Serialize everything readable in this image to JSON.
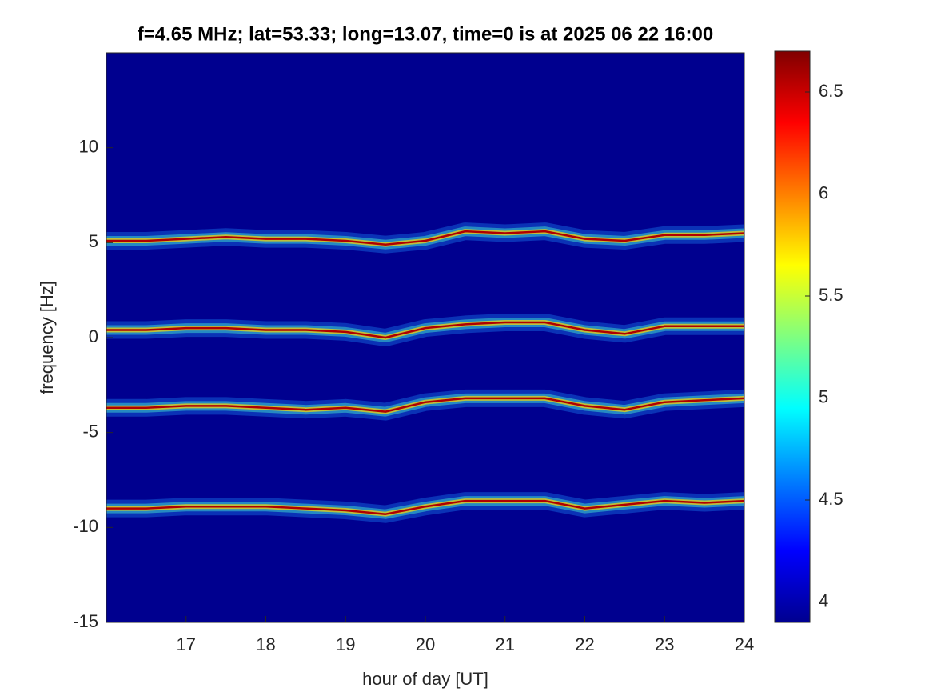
{
  "chart_data": {
    "type": "spectrogram",
    "title": "f=4.65 MHz;  lat=53.33; long=13.07, time=0 is at 2025 06 22 16:00",
    "xlabel": "hour of day [UT]",
    "ylabel": "frequency [Hz]",
    "xlim": [
      16,
      24
    ],
    "xticks": [
      17,
      18,
      19,
      20,
      21,
      22,
      23,
      24
    ],
    "ylim": [
      -15,
      15
    ],
    "yticks": [
      -15,
      -10,
      -5,
      0,
      5,
      10
    ],
    "background": "#00008f",
    "line_color": "#b00000",
    "x": [
      16,
      16.5,
      17,
      17.5,
      18,
      18.5,
      19,
      19.5,
      20,
      20.5,
      21,
      21.5,
      22,
      22.5,
      23,
      23.5,
      24
    ],
    "series": [
      {
        "values": [
          5.1,
          5.1,
          5.2,
          5.3,
          5.2,
          5.2,
          5.1,
          4.9,
          5.1,
          5.6,
          5.5,
          5.6,
          5.2,
          5.1,
          5.4,
          5.4,
          5.5
        ]
      },
      {
        "values": [
          0.4,
          0.4,
          0.5,
          0.5,
          0.4,
          0.4,
          0.3,
          0.0,
          0.5,
          0.7,
          0.8,
          0.8,
          0.4,
          0.2,
          0.6,
          0.6,
          0.6
        ]
      },
      {
        "values": [
          -3.7,
          -3.7,
          -3.6,
          -3.6,
          -3.7,
          -3.8,
          -3.7,
          -3.9,
          -3.4,
          -3.2,
          -3.2,
          -3.2,
          -3.6,
          -3.8,
          -3.4,
          -3.3,
          -3.2
        ]
      },
      {
        "values": [
          -9.0,
          -9.0,
          -8.9,
          -8.9,
          -8.9,
          -9.0,
          -9.1,
          -9.3,
          -8.9,
          -8.6,
          -8.6,
          -8.6,
          -9.0,
          -8.8,
          -8.6,
          -8.7,
          -8.6
        ]
      }
    ],
    "colorbar": {
      "lim": [
        3.9,
        6.7
      ],
      "ticks": [
        4,
        4.5,
        5,
        5.5,
        6,
        6.5
      ]
    }
  }
}
